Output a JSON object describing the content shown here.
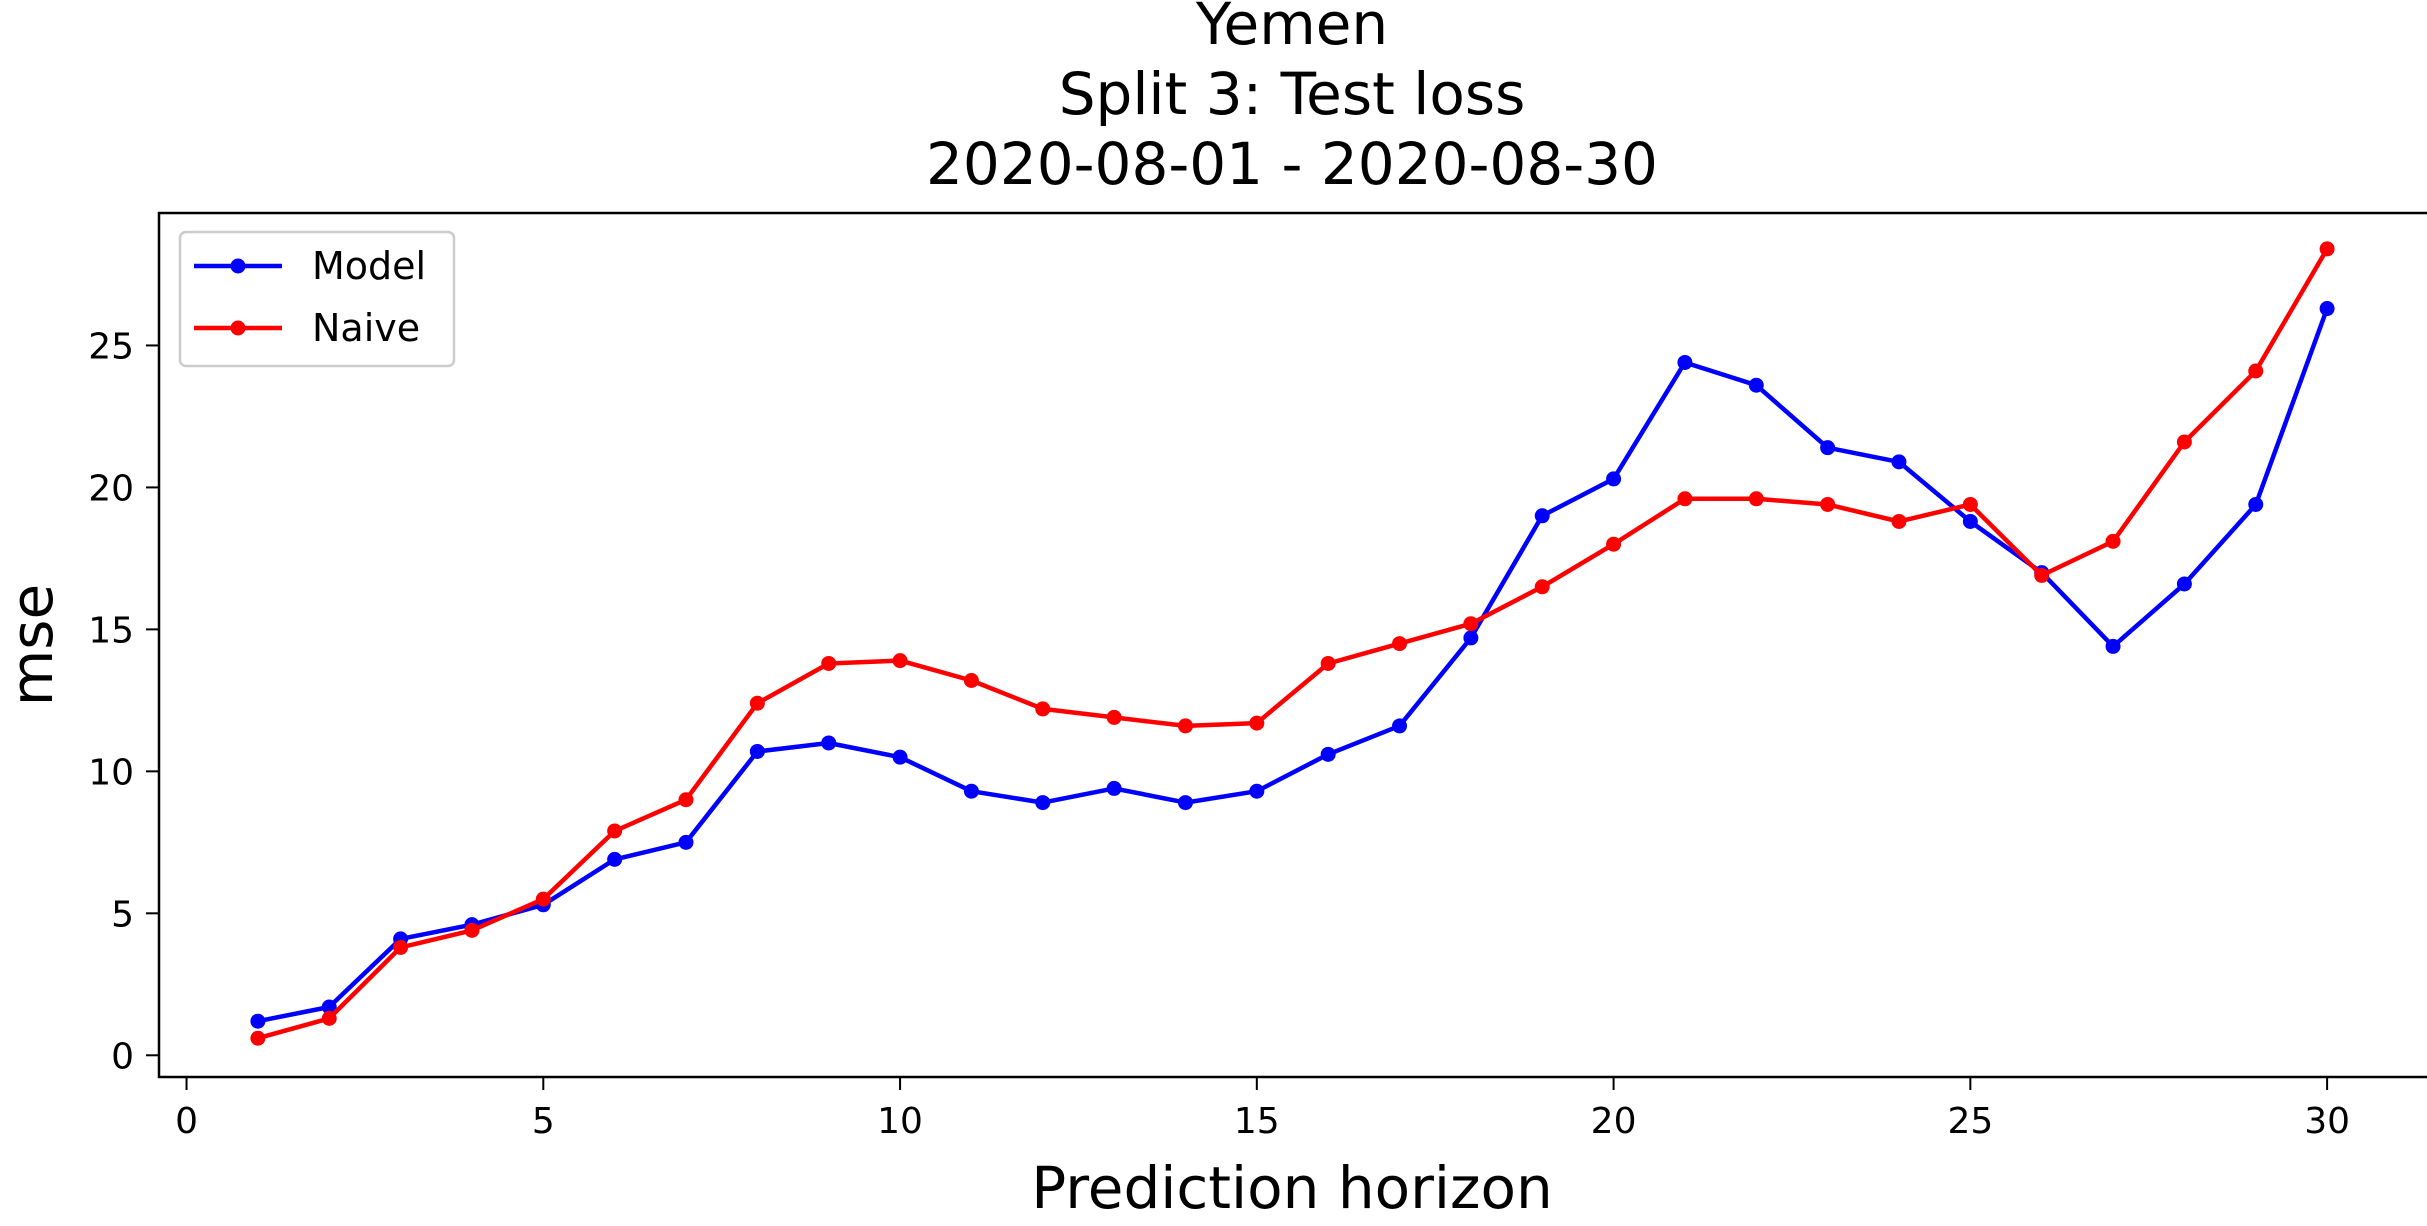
{
  "chart_data": {
    "type": "line",
    "title": [
      "Yemen",
      "Split 3: Test loss",
      "2020-08-01 - 2020-08-30"
    ],
    "xlabel": "Prediction horizon",
    "ylabel": "mse",
    "xlim": [
      -0.4,
      31.4
    ],
    "ylim": [
      -0.8,
      29.7
    ],
    "xticks": [
      0,
      5,
      10,
      15,
      20,
      25,
      30
    ],
    "yticks": [
      0,
      5,
      10,
      15,
      20,
      25
    ],
    "grid": false,
    "legend_position": "top-left",
    "x": [
      1,
      2,
      3,
      4,
      5,
      6,
      7,
      8,
      9,
      10,
      11,
      12,
      13,
      14,
      15,
      16,
      17,
      18,
      19,
      20,
      21,
      22,
      23,
      24,
      25,
      26,
      27,
      28,
      29,
      30
    ],
    "series": [
      {
        "name": "Model",
        "color": "#0000ff",
        "values": [
          1.2,
          1.7,
          4.1,
          4.6,
          5.3,
          6.9,
          7.5,
          10.7,
          11.0,
          10.5,
          9.3,
          8.9,
          9.4,
          8.9,
          9.3,
          10.6,
          11.6,
          14.7,
          19.0,
          20.3,
          24.4,
          23.6,
          21.4,
          20.9,
          18.8,
          17.0,
          14.4,
          16.6,
          19.4,
          26.3
        ]
      },
      {
        "name": "Naive",
        "color": "#ff0000",
        "values": [
          0.6,
          1.3,
          3.8,
          4.4,
          5.5,
          7.9,
          9.0,
          12.4,
          13.8,
          13.9,
          13.2,
          12.2,
          11.9,
          11.6,
          11.7,
          13.8,
          14.5,
          15.2,
          16.5,
          18.0,
          19.6,
          19.6,
          19.4,
          18.8,
          19.4,
          16.9,
          18.1,
          21.6,
          24.1,
          28.4
        ]
      }
    ]
  }
}
